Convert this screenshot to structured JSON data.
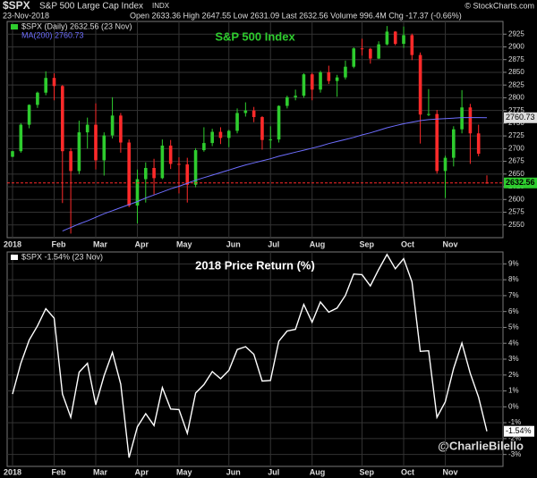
{
  "header": {
    "symbol": "$SPX",
    "name": "S&P 500 Large Cap Index",
    "exchange": "INDX",
    "date": "23-Nov-2018",
    "quote": "Open 2633.36  High 2647.55  Low 2631.09  Last 2632.56  Volume 996.4M  Chg -17.37 (-0.66%)",
    "source": "© StockCharts.com",
    "credit": "@CharlieBilello"
  },
  "chart_data": [
    {
      "type": "candlestick",
      "title": "S&P 500 Index",
      "legend": "$SPX (Daily) 2632.56 (23 Nov)",
      "categories": [
        "2018",
        null,
        null,
        null,
        null,
        "Feb",
        null,
        null,
        null,
        null,
        "Mar",
        null,
        null,
        null,
        null,
        "Apr",
        null,
        null,
        null,
        null,
        "May",
        null,
        null,
        null,
        null,
        null,
        "Jun",
        null,
        null,
        null,
        null,
        "Jul",
        null,
        null,
        null,
        null,
        "Aug",
        null,
        null,
        null,
        null,
        null,
        "Sep",
        null,
        null,
        null,
        null,
        "Oct",
        null,
        null,
        null,
        null,
        "Nov",
        null,
        null,
        null,
        null,
        null
      ],
      "open": [
        2684,
        2695,
        2747,
        2786,
        2810,
        2839,
        2823,
        2695,
        2656,
        2732,
        2747,
        2677,
        2726,
        2765,
        2712,
        2588,
        2640,
        2662,
        2642,
        2706,
        2670,
        2669,
        2629,
        2697,
        2711,
        2733,
        2721,
        2735,
        2770,
        2775,
        2762,
        2717,
        2718,
        2784,
        2801,
        2804,
        2846,
        2816,
        2850,
        2833,
        2840,
        2861,
        2897,
        2896,
        2877,
        2905,
        2930,
        2906,
        2923,
        2884,
        2767,
        2768,
        2656,
        2682,
        2738,
        2781,
        2730,
        2633.36
      ],
      "high": [
        2696,
        2750,
        2787,
        2812,
        2852,
        2848,
        2825,
        2701,
        2755,
        2761,
        2789,
        2732,
        2801,
        2770,
        2718,
        2659,
        2673,
        2680,
        2718,
        2717,
        2683,
        2682,
        2701,
        2742,
        2739,
        2742,
        2737,
        2779,
        2791,
        2782,
        2764,
        2744,
        2785,
        2804,
        2816,
        2848,
        2849,
        2853,
        2863,
        2845,
        2873,
        2899,
        2916,
        2898,
        2911,
        2941,
        2931,
        2940,
        2926,
        2889,
        2817,
        2776,
        2686,
        2744,
        2815,
        2788,
        2747,
        2647.55
      ],
      "low": [
        2683,
        2692,
        2740,
        2780,
        2805,
        2795,
        2593,
        2533,
        2650,
        2700,
        2659,
        2647,
        2720,
        2692,
        2585,
        2553,
        2594,
        2610,
        2640,
        2660,
        2612,
        2594,
        2624,
        2694,
        2705,
        2709,
        2703,
        2730,
        2763,
        2752,
        2698,
        2700,
        2712,
        2779,
        2795,
        2800,
        2795,
        2810,
        2827,
        2802,
        2836,
        2858,
        2883,
        2867,
        2876,
        2903,
        2903,
        2898,
        2874,
        2710,
        2764,
        2651,
        2603,
        2665,
        2730,
        2670,
        2685,
        2631.09
      ],
      "close": [
        2695,
        2747,
        2786,
        2810,
        2839,
        2823,
        2695,
        2656,
        2732,
        2747,
        2677,
        2726,
        2765,
        2712,
        2588,
        2640,
        2662,
        2642,
        2706,
        2670,
        2669,
        2629,
        2697,
        2711,
        2733,
        2721,
        2735,
        2770,
        2775,
        2762,
        2717,
        2718,
        2784,
        2801,
        2804,
        2846,
        2816,
        2850,
        2833,
        2840,
        2861,
        2897,
        2896,
        2877,
        2905,
        2930,
        2906,
        2923,
        2884,
        2767,
        2768,
        2656,
        2682,
        2738,
        2781,
        2730,
        2690,
        2632.56
      ],
      "up_color": "#2ecc2e",
      "down_color": "#ff2a2a",
      "series": [
        {
          "name": "MA(200) 2760.73",
          "color": "#6e6eff",
          "values": [
            null,
            null,
            null,
            null,
            null,
            null,
            2538,
            2545,
            2552,
            2558,
            2565,
            2572,
            2578,
            2584,
            2590,
            2596,
            2603,
            2609,
            2615,
            2621,
            2626,
            2632,
            2638,
            2643,
            2648,
            2653,
            2658,
            2663,
            2668,
            2672,
            2676,
            2680,
            2685,
            2689,
            2693,
            2697,
            2701,
            2705,
            2710,
            2714,
            2718,
            2722,
            2727,
            2731,
            2736,
            2741,
            2745,
            2749,
            2752,
            2755,
            2757,
            2758,
            2759,
            2760,
            2761,
            2761,
            2761,
            2760.73
          ]
        }
      ],
      "ylim": [
        2525,
        2950
      ],
      "yticks": [
        2550,
        2575,
        2600,
        2625,
        2650,
        2675,
        2700,
        2725,
        2750,
        2775,
        2800,
        2825,
        2850,
        2875,
        2900,
        2925
      ],
      "grid": true
    },
    {
      "type": "line",
      "title": "2018 Price Return (%)",
      "legend": "$SPX -1.54% (23 Nov)",
      "categories": [
        "2018",
        null,
        null,
        null,
        null,
        "Feb",
        null,
        null,
        null,
        null,
        "Mar",
        null,
        null,
        null,
        null,
        "Apr",
        null,
        null,
        null,
        null,
        "May",
        null,
        null,
        null,
        null,
        null,
        "Jun",
        null,
        null,
        null,
        null,
        "Jul",
        null,
        null,
        null,
        null,
        "Aug",
        null,
        null,
        null,
        null,
        null,
        "Sep",
        null,
        null,
        null,
        null,
        "Oct",
        null,
        null,
        null,
        null,
        "Nov",
        null,
        null,
        null,
        null,
        null
      ],
      "series": [
        {
          "name": "$SPX",
          "color": "#ffffff",
          "values": [
            0.8,
            2.74,
            4.2,
            5.1,
            6.18,
            5.59,
            0.8,
            -0.66,
            2.18,
            2.74,
            0.13,
            1.96,
            3.42,
            1.43,
            -3.2,
            -1.26,
            -0.43,
            -1.18,
            1.21,
            -0.14,
            -0.17,
            -1.67,
            0.87,
            1.4,
            2.22,
            1.77,
            2.3,
            3.61,
            3.79,
            3.31,
            1.62,
            1.66,
            4.13,
            4.77,
            4.88,
            6.45,
            5.33,
            6.6,
            5.96,
            6.22,
            7.01,
            8.36,
            8.32,
            7.61,
            8.65,
            9.59,
            8.69,
            9.33,
            7.87,
            3.49,
            3.53,
            -0.66,
            0.31,
            2.41,
            4.02,
            2.11,
            0.61,
            -1.54
          ]
        }
      ],
      "last_value_label": "-1.54%",
      "ylim": [
        -3.75,
        9.75
      ],
      "yticks": [
        {
          "value": -3,
          "label": "-3%"
        },
        {
          "value": -2,
          "label": "-2%"
        },
        {
          "value": -1,
          "label": "-1%"
        },
        {
          "value": 0,
          "label": "0%"
        },
        {
          "value": 1,
          "label": "1%"
        },
        {
          "value": 2,
          "label": "2%"
        },
        {
          "value": 3,
          "label": "3%"
        },
        {
          "value": 4,
          "label": "4%"
        },
        {
          "value": 5,
          "label": "5%"
        },
        {
          "value": 6,
          "label": "6%"
        },
        {
          "value": 7,
          "label": "7%"
        },
        {
          "value": 8,
          "label": "8%"
        },
        {
          "value": 9,
          "label": "9%"
        }
      ],
      "grid": true
    }
  ]
}
